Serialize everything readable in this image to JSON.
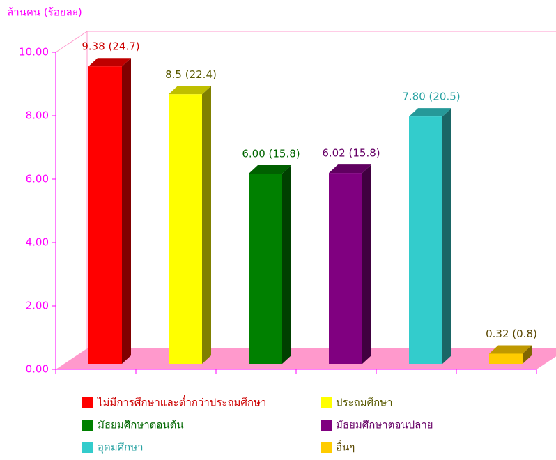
{
  "chart_data": {
    "type": "bar",
    "y_axis_label": "ล้านคน (ร้อยละ)",
    "ylim": [
      0,
      10
    ],
    "yticks": [
      {
        "value": 0,
        "label": "0.00"
      },
      {
        "value": 2,
        "label": "2.00"
      },
      {
        "value": 4,
        "label": "4.00"
      },
      {
        "value": 6,
        "label": "6.00"
      },
      {
        "value": 8,
        "label": "8.00"
      },
      {
        "value": 10,
        "label": "10.00"
      }
    ],
    "series": [
      {
        "name": "ไม่มีการศึกษาและต่ำกว่าประถมศึกษา",
        "color": "#ff0000",
        "values": [
          9.38
        ],
        "value_labels": [
          "9.38 (24.7)"
        ]
      },
      {
        "name": "ประถมศึกษา",
        "color": "#ffff00",
        "values": [
          8.5
        ],
        "value_labels": [
          "8.5 (22.4)"
        ]
      },
      {
        "name": "มัธยมศึกษาตอนต้น",
        "color": "#008000",
        "values": [
          6.0
        ],
        "value_labels": [
          "6.00 (15.8)"
        ]
      },
      {
        "name": "มัธยมศึกษาตอนปลาย",
        "color": "#800080",
        "values": [
          6.02
        ],
        "value_labels": [
          "6.02 (15.8)"
        ]
      },
      {
        "name": "อุดมศึกษา",
        "color": "#33cccc",
        "values": [
          7.8
        ],
        "value_labels": [
          "7.80 (20.5)"
        ]
      },
      {
        "name": "อื่นๆ",
        "color": "#ffcc00",
        "values": [
          0.32
        ],
        "value_labels": [
          "0.32 (0.8)"
        ]
      }
    ]
  }
}
